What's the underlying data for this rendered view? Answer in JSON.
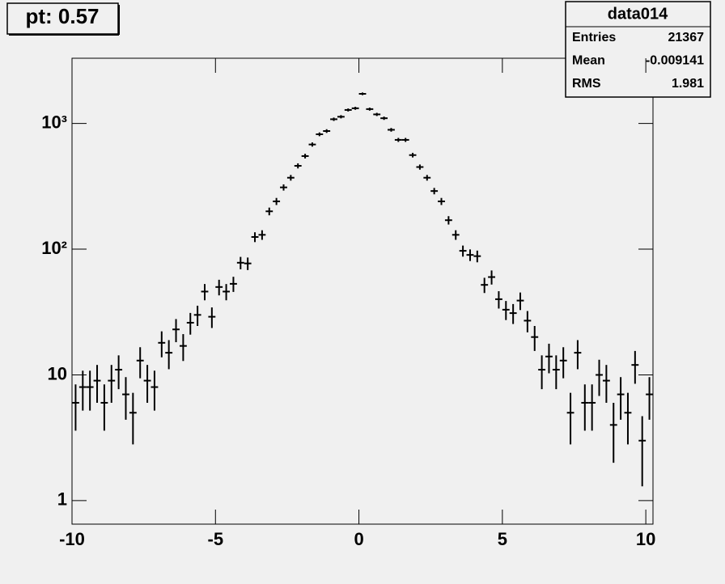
{
  "chart_data": {
    "type": "histogram",
    "title": "pt: 0.57",
    "stats": {
      "title": "data014",
      "rows": [
        [
          "Entries",
          "21367"
        ],
        [
          "Mean",
          "-0.009141"
        ],
        [
          "RMS",
          "1.981"
        ]
      ]
    },
    "bins": [
      -10,
      -9.75,
      -9.5,
      -9.25,
      -9,
      -8.75,
      -8.5,
      -8.25,
      -8,
      -7.75,
      -7.5,
      -7.25,
      -7,
      -6.75,
      -6.5,
      -6.25,
      -6,
      -5.75,
      -5.5,
      -5.25,
      -5,
      -4.75,
      -4.5,
      -4.25,
      -4,
      -3.75,
      -3.5,
      -3.25,
      -3,
      -2.75,
      -2.5,
      -2.25,
      -2,
      -1.75,
      -1.5,
      -1.25,
      -1,
      -0.75,
      -0.5,
      -0.25,
      0,
      0.25,
      0.5,
      0.75,
      1,
      1.25,
      1.5,
      1.75,
      2,
      2.25,
      2.5,
      2.75,
      3,
      3.25,
      3.5,
      3.75,
      4,
      4.25,
      4.5,
      4.75,
      5,
      5.25,
      5.5,
      5.75,
      6,
      6.25,
      6.5,
      6.75,
      7,
      7.25,
      7.5,
      7.75,
      8,
      8.25,
      8.5,
      8.75,
      9,
      9.25,
      9.5,
      9.75,
      10,
      10.25
    ],
    "values": [
      6,
      8,
      8,
      9,
      6,
      9,
      11,
      7,
      5,
      13,
      9,
      8,
      18,
      15,
      23,
      17,
      26,
      30,
      46,
      29,
      50,
      46,
      53,
      78,
      77,
      125,
      130,
      200,
      240,
      310,
      370,
      460,
      550,
      680,
      820,
      870,
      1080,
      1130,
      1280,
      1320,
      1720,
      1300,
      1180,
      1100,
      890,
      740,
      740,
      560,
      450,
      370,
      290,
      240,
      170,
      130,
      97,
      90,
      88,
      52,
      60,
      40,
      33,
      31,
      39,
      27,
      20,
      11,
      14,
      11,
      13,
      5,
      15,
      6,
      6,
      10,
      9,
      4,
      7,
      5,
      12,
      3,
      7
    ],
    "errors": [
      2.4,
      2.8,
      2.8,
      3,
      2.4,
      3,
      3.3,
      2.6,
      2.2,
      3.6,
      3,
      2.8,
      4.2,
      3.9,
      4.8,
      4.1,
      5.1,
      5.5,
      6.8,
      5.4,
      7.1,
      6.8,
      7.3,
      8.8,
      8.8,
      11.2,
      11.4,
      14.1,
      15.5,
      17.6,
      19.2,
      21.4,
      23.5,
      26.1,
      28.6,
      29.5,
      32.9,
      33.6,
      35.8,
      36.3,
      41.5,
      36.1,
      34.4,
      33.2,
      29.8,
      27.2,
      27.2,
      23.7,
      21.2,
      19.2,
      17,
      15.5,
      13,
      11.4,
      9.8,
      9.5,
      9.4,
      7.2,
      7.7,
      6.3,
      5.7,
      5.6,
      6.2,
      5.2,
      4.5,
      3.3,
      3.7,
      3.3,
      3.6,
      2.2,
      3.9,
      2.4,
      2.4,
      3.2,
      3,
      2,
      2.6,
      2.2,
      3.5,
      1.7,
      2.6
    ],
    "color": "#000000",
    "xlim": [
      -10,
      10.25
    ],
    "xticks": [
      -10,
      -5,
      0,
      5,
      10
    ],
    "ylim": [
      0.65,
      3300
    ],
    "ylog": true,
    "yticks": [
      1,
      10,
      {
        "value": 100,
        "label": "10²"
      },
      {
        "value": 1000,
        "label": "10³"
      }
    ]
  }
}
